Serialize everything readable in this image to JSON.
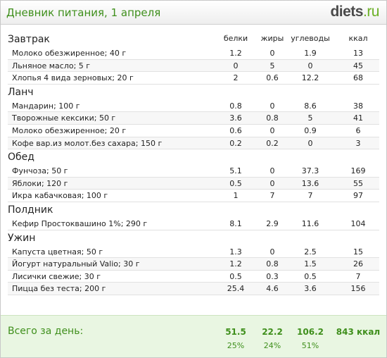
{
  "title": "Дневник питания, 1 апреля",
  "logo": {
    "main": "diets",
    "suffix": ".ru"
  },
  "columns": {
    "protein": "белки",
    "fat": "жиры",
    "carbs": "углеводы",
    "kcal": "ккал"
  },
  "meals": [
    {
      "title": "Завтрак",
      "items": [
        {
          "name": "Молоко обезжиренное; 40 г",
          "protein": "1.2",
          "fat": "0",
          "carbs": "1.9",
          "kcal": "13"
        },
        {
          "name": "Льняное масло; 5 г",
          "protein": "0",
          "fat": "5",
          "carbs": "0",
          "kcal": "45"
        },
        {
          "name": "Хлопья 4 вида зерновых; 20 г",
          "protein": "2",
          "fat": "0.6",
          "carbs": "12.2",
          "kcal": "68"
        }
      ]
    },
    {
      "title": "Ланч",
      "items": [
        {
          "name": "Мандарин; 100 г",
          "protein": "0.8",
          "fat": "0",
          "carbs": "8.6",
          "kcal": "38"
        },
        {
          "name": "Творожные кексики; 50 г",
          "protein": "3.6",
          "fat": "0.8",
          "carbs": "5",
          "kcal": "41"
        },
        {
          "name": "Молоко обезжиренное; 20 г",
          "protein": "0.6",
          "fat": "0",
          "carbs": "0.9",
          "kcal": "6"
        },
        {
          "name": "Кофе вар.из молот.без сахара; 150 г",
          "protein": "0.2",
          "fat": "0.2",
          "carbs": "0",
          "kcal": "3"
        }
      ]
    },
    {
      "title": "Обед",
      "items": [
        {
          "name": "Фунчоза; 50 г",
          "protein": "5.1",
          "fat": "0",
          "carbs": "37.3",
          "kcal": "169"
        },
        {
          "name": "Яблоки; 120 г",
          "protein": "0.5",
          "fat": "0",
          "carbs": "13.6",
          "kcal": "55"
        },
        {
          "name": "Икра кабачковая; 100 г",
          "protein": "1",
          "fat": "7",
          "carbs": "7",
          "kcal": "97"
        }
      ]
    },
    {
      "title": "Полдник",
      "items": [
        {
          "name": "Кефир Простоквашино 1%; 290 г",
          "protein": "8.1",
          "fat": "2.9",
          "carbs": "11.6",
          "kcal": "104"
        }
      ]
    },
    {
      "title": "Ужин",
      "items": [
        {
          "name": "Капуста цветная; 50 г",
          "protein": "1.3",
          "fat": "0",
          "carbs": "2.5",
          "kcal": "15"
        },
        {
          "name": "Йогурт натуральный Valio; 30 г",
          "protein": "1.2",
          "fat": "0.8",
          "carbs": "1.5",
          "kcal": "26"
        },
        {
          "name": "Лисички свежие; 30 г",
          "protein": "0.5",
          "fat": "0.3",
          "carbs": "0.5",
          "kcal": "7"
        },
        {
          "name": "Пицца без теста; 200 г",
          "protein": "25.4",
          "fat": "4.6",
          "carbs": "3.6",
          "kcal": "156"
        }
      ]
    }
  ],
  "totals": {
    "label": "Всего за день:",
    "protein": "51.5",
    "fat": "22.2",
    "carbs": "106.2",
    "kcal": "843 ккал",
    "protein_pct": "25%",
    "fat_pct": "24%",
    "carbs_pct": "51%"
  }
}
